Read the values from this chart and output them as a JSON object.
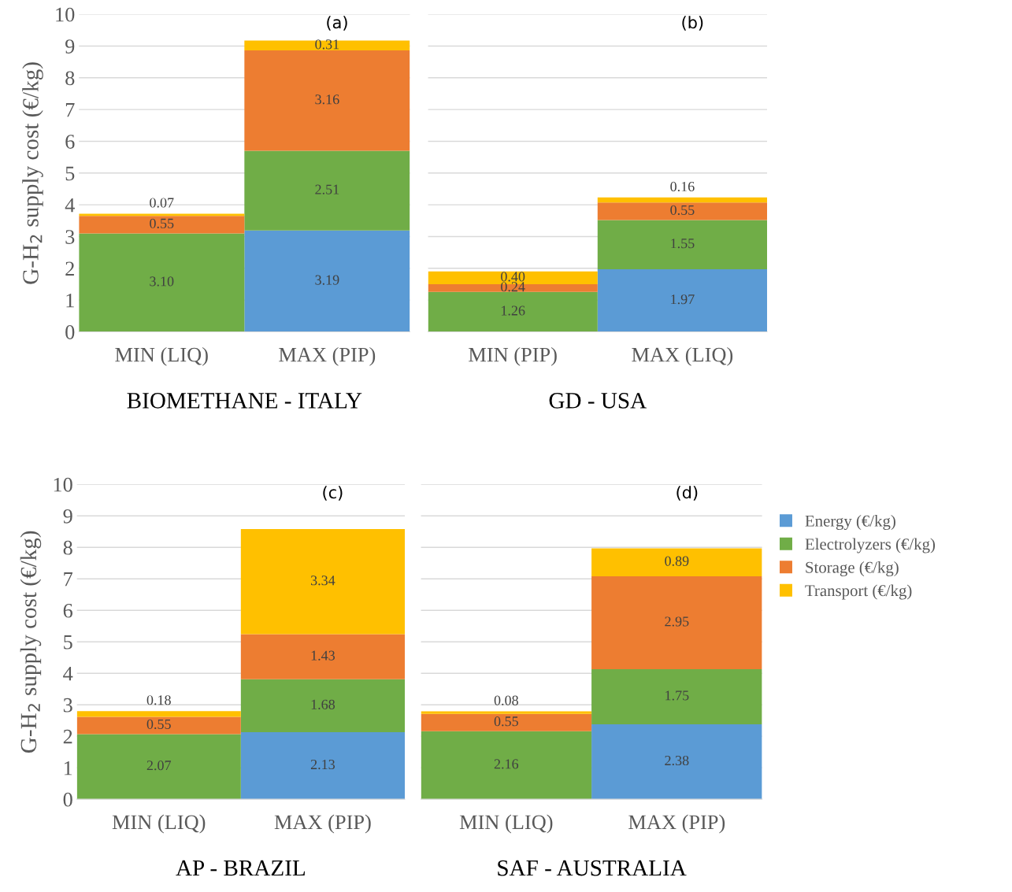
{
  "chart_data": [
    {
      "type": "bar",
      "stacked": true,
      "xlabel": "BIOMETHANE - ITALY",
      "ylabel": "G-H$_{2}$ supply cost (€/kg)",
      "categories": [
        "MIN (LIQ)",
        "MAX (PIP)"
      ],
      "ylim": [
        0,
        10
      ],
      "yticks": [
        0,
        1,
        2,
        3,
        4,
        5,
        6,
        7,
        8,
        9,
        10
      ],
      "grid": "y",
      "legend": false,
      "annotations": [
        "(a)"
      ],
      "series": [
        {
          "color": "#5b9bd5",
          "values": [
            0,
            3.19
          ],
          "value_labels": [
            null,
            "3.19"
          ]
        },
        {
          "color": "#70ad47",
          "values": [
            3.1,
            2.51
          ],
          "value_labels": [
            "3.10",
            "2.51"
          ]
        },
        {
          "color": "#ed7d31",
          "values": [
            0.55,
            3.16
          ],
          "value_labels": [
            "0.55",
            "3.16"
          ]
        },
        {
          "color": "#ffc000",
          "values": [
            0.07,
            0.31
          ],
          "value_labels": [
            "0.07",
            "0.31"
          ]
        }
      ]
    },
    {
      "type": "bar",
      "stacked": true,
      "xlabel": "GD - USA",
      "categories": [
        "MIN (PIP)",
        "MAX (LIQ)"
      ],
      "ylim": [
        0,
        10
      ],
      "yticks": [
        0,
        1,
        2,
        3,
        4,
        5,
        6,
        7,
        8,
        9,
        10
      ],
      "tick_labels": "x",
      "grid": "y",
      "legend": false,
      "annotations": [
        "(b)"
      ],
      "series": [
        {
          "color": "#5b9bd5",
          "values": [
            0,
            1.97
          ],
          "value_labels": [
            null,
            "1.97"
          ]
        },
        {
          "color": "#70ad47",
          "values": [
            1.26,
            1.55
          ],
          "value_labels": [
            "1.26",
            "1.55"
          ]
        },
        {
          "color": "#ed7d31",
          "values": [
            0.24,
            0.55
          ],
          "value_labels": [
            "0.24",
            "0.55"
          ]
        },
        {
          "color": "#ffc000",
          "values": [
            0.4,
            0.16
          ],
          "value_labels": [
            "0.40",
            "0.16"
          ]
        }
      ]
    },
    {
      "type": "bar",
      "stacked": true,
      "xlabel": "AP - BRAZIL",
      "ylabel": "G-H$_{2}$ supply cost (€/kg)",
      "categories": [
        "MIN (LIQ)",
        "MAX (PIP)"
      ],
      "ylim": [
        0,
        10
      ],
      "yticks": [
        0,
        1,
        2,
        3,
        4,
        5,
        6,
        7,
        8,
        9,
        10
      ],
      "grid": "y",
      "legend": false,
      "annotations": [
        "(c)"
      ],
      "series": [
        {
          "color": "#5b9bd5",
          "values": [
            0,
            2.13
          ],
          "value_labels": [
            null,
            "2.13"
          ]
        },
        {
          "color": "#70ad47",
          "values": [
            2.07,
            1.68
          ],
          "value_labels": [
            "2.07",
            "1.68"
          ]
        },
        {
          "color": "#ed7d31",
          "values": [
            0.55,
            1.43
          ],
          "value_labels": [
            "0.55",
            "1.43"
          ]
        },
        {
          "color": "#ffc000",
          "values": [
            0.18,
            3.34
          ],
          "value_labels": [
            "0.18",
            "3.34"
          ]
        }
      ]
    },
    {
      "type": "bar",
      "stacked": true,
      "xlabel": "SAF - AUSTRALIA",
      "categories": [
        "MIN (LIQ)",
        "MAX (PIP)"
      ],
      "ylim": [
        0,
        10
      ],
      "yticks": [
        0,
        1,
        2,
        3,
        4,
        5,
        6,
        7,
        8,
        9,
        10
      ],
      "tick_labels": "x",
      "grid": "y",
      "legend": "right",
      "annotations": [
        "(d)"
      ],
      "series": [
        {
          "name": "Energy (€/kg)",
          "color": "#5b9bd5",
          "values": [
            0,
            2.38
          ],
          "value_labels": [
            null,
            "2.38"
          ]
        },
        {
          "name": "Electrolyzers (€/kg)",
          "color": "#70ad47",
          "values": [
            2.16,
            1.75
          ],
          "value_labels": [
            "2.16",
            "1.75"
          ]
        },
        {
          "name": "Storage (€/kg)",
          "color": "#ed7d31",
          "values": [
            0.55,
            2.95
          ],
          "value_labels": [
            "0.55",
            "2.95"
          ]
        },
        {
          "name": "Transport (€/kg)",
          "color": "#ffc000",
          "values": [
            0.08,
            0.89
          ],
          "value_labels": [
            "0.08",
            "0.89"
          ]
        }
      ]
    }
  ]
}
